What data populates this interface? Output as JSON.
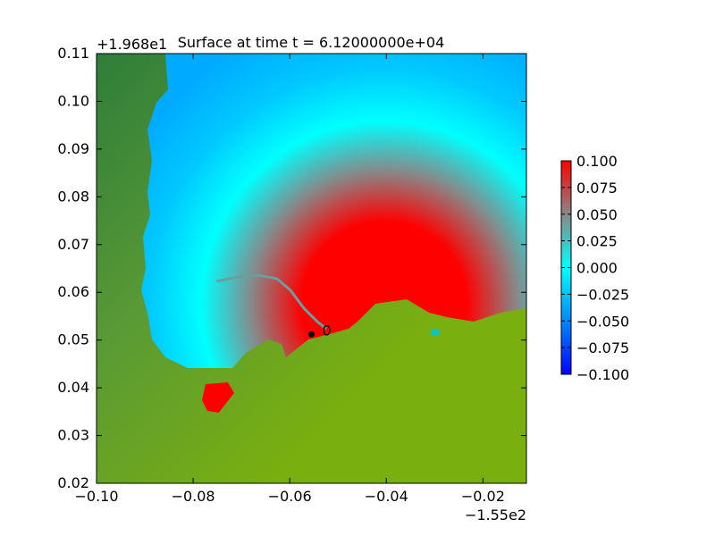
{
  "chart_data": {
    "type": "heatmap",
    "title": "Surface at time t = 6.12000000e+04",
    "x_offset_label": "−1.55e2",
    "y_offset_label": "+1.968e1",
    "x_ticks": [
      "−0.10",
      "−0.08",
      "−0.06",
      "−0.04",
      "−0.02"
    ],
    "y_ticks": [
      "0.02",
      "0.03",
      "0.04",
      "0.05",
      "0.06",
      "0.07",
      "0.08",
      "0.09",
      "0.10",
      "0.11"
    ],
    "xlim": [
      -0.1,
      -0.011
    ],
    "ylim": [
      0.02,
      0.11
    ],
    "colorbar": {
      "range": [
        -0.1,
        0.1
      ],
      "ticks": [
        "0.100",
        "0.075",
        "0.050",
        "0.025",
        "0.000",
        "−0.025",
        "−0.050",
        "−0.075",
        "−0.100"
      ],
      "colors": [
        "#0000ff",
        "#00aaff",
        "#00ffff",
        "#888888",
        "#ff0000"
      ]
    },
    "gauge": {
      "label": "0",
      "x": -0.0555,
      "y": 0.0512
    },
    "land_colors": [
      "#2e7d3a",
      "#5a9a35",
      "#7aaf10"
    ]
  }
}
